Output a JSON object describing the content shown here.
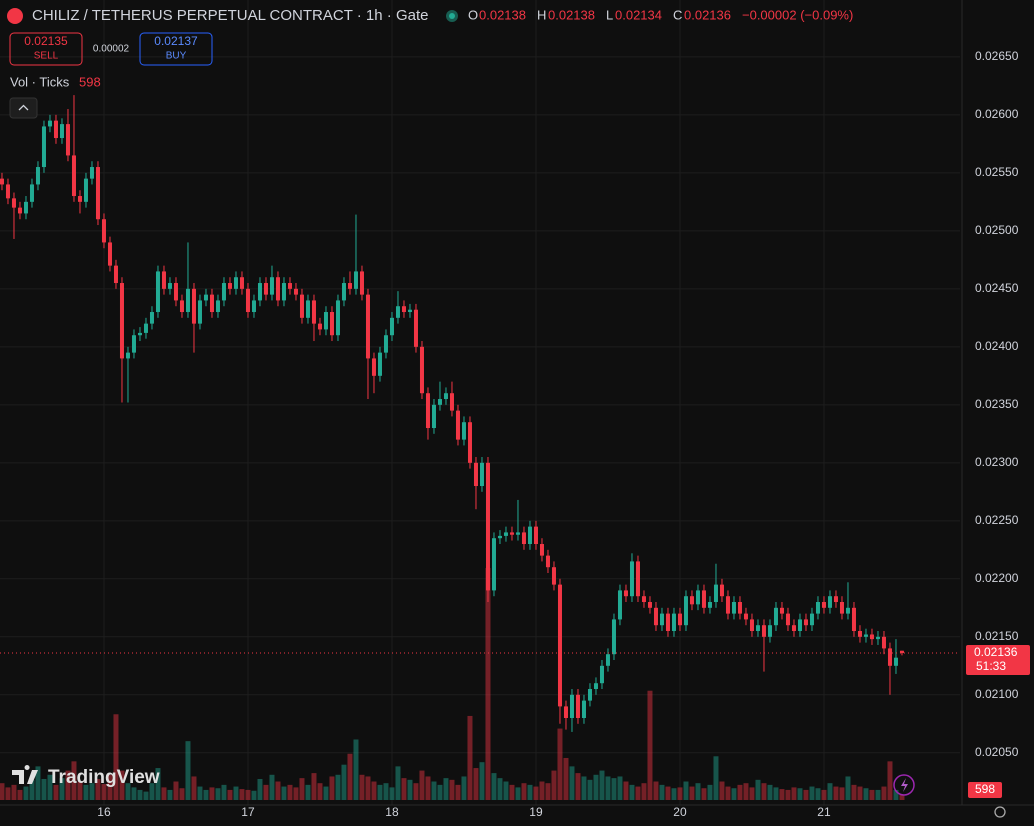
{
  "header": {
    "title": "CHILIZ / TETHERUS PERPETUAL CONTRACT · 1h · Gate",
    "o": "O",
    "h": "H",
    "l": "L",
    "c": "C",
    "change": "−0.00002 (−0.09%)",
    "sell_price": "0.02135",
    "sell": "SELL",
    "spread": "0.00002",
    "buy_price": "0.02137",
    "buy": "BUY",
    "vol_label": "Vol · Ticks",
    "countdown": "51:33",
    "logo": "TradingView"
  },
  "chart_data": {
    "type": "candlestick",
    "up_color": "#22ab94",
    "down_color": "#f23645",
    "ylim": [
      0.02005,
      0.02699
    ],
    "yticks": [
      {
        "value": 0.0205,
        "label": "0.02050"
      },
      {
        "value": 0.021,
        "label": "0.02100"
      },
      {
        "value": 0.0215,
        "label": "0.02150"
      },
      {
        "value": 0.022,
        "label": "0.02200"
      },
      {
        "value": 0.0225,
        "label": "0.02250"
      },
      {
        "value": 0.023,
        "label": "0.02300"
      },
      {
        "value": 0.0235,
        "label": "0.02350"
      },
      {
        "value": 0.024,
        "label": "0.02400"
      },
      {
        "value": 0.0245,
        "label": "0.02450"
      },
      {
        "value": 0.025,
        "label": "0.02500"
      },
      {
        "value": 0.0255,
        "label": "0.02550"
      },
      {
        "value": 0.026,
        "label": "0.02600"
      },
      {
        "value": 0.0265,
        "label": "0.02650"
      }
    ],
    "xlim": [
      -0.33,
      159.67
    ],
    "xticks": [
      {
        "value": 17,
        "label": "16"
      },
      {
        "value": 41,
        "label": "17"
      },
      {
        "value": 65,
        "label": "18"
      },
      {
        "value": 89,
        "label": "19"
      },
      {
        "value": 113,
        "label": "20"
      },
      {
        "value": 137,
        "label": "21"
      }
    ],
    "open": [
      0.02545,
      0.0254,
      0.02528,
      0.0252,
      0.02515,
      0.02525,
      0.0254,
      0.02555,
      0.0259,
      0.02595,
      0.0258,
      0.02592,
      0.02565,
      0.0253,
      0.02525,
      0.02545,
      0.02555,
      0.0251,
      0.0249,
      0.0247,
      0.02455,
      0.0239,
      0.02395,
      0.0241,
      0.02412,
      0.0242,
      0.0243,
      0.02465,
      0.0245,
      0.02455,
      0.0244,
      0.0243,
      0.0245,
      0.0242,
      0.0244,
      0.02445,
      0.0243,
      0.0244,
      0.02455,
      0.0245,
      0.0246,
      0.0245,
      0.0243,
      0.0244,
      0.02455,
      0.02445,
      0.0246,
      0.0244,
      0.02455,
      0.0245,
      0.02445,
      0.02425,
      0.0244,
      0.0242,
      0.02415,
      0.0243,
      0.0241,
      0.0244,
      0.02455,
      0.0245,
      0.02465,
      0.02445,
      0.0239,
      0.02375,
      0.02395,
      0.0241,
      0.02425,
      0.02435,
      0.0243,
      0.02432,
      0.024,
      0.0236,
      0.0233,
      0.0235,
      0.02355,
      0.0236,
      0.02345,
      0.0232,
      0.02335,
      0.023,
      0.0228,
      0.023,
      0.0219,
      0.02235,
      0.02237,
      0.0224,
      0.02238,
      0.0224,
      0.0223,
      0.02245,
      0.0223,
      0.0222,
      0.0221,
      0.02195,
      0.0209,
      0.0208,
      0.021,
      0.0208,
      0.02095,
      0.02105,
      0.0211,
      0.02125,
      0.02135,
      0.02165,
      0.0219,
      0.02185,
      0.02215,
      0.02185,
      0.0218,
      0.02175,
      0.0216,
      0.0217,
      0.02155,
      0.0217,
      0.0216,
      0.02185,
      0.02178,
      0.0219,
      0.02175,
      0.0218,
      0.02195,
      0.02185,
      0.0217,
      0.0218,
      0.0217,
      0.02165,
      0.02155,
      0.0216,
      0.0215,
      0.0216,
      0.02175,
      0.0217,
      0.0216,
      0.02155,
      0.02165,
      0.0216,
      0.0217,
      0.0218,
      0.02175,
      0.02185,
      0.0218,
      0.0217,
      0.02175,
      0.02155,
      0.0215,
      0.02152,
      0.02148,
      0.0215,
      0.0214,
      0.02125,
      0.02138
    ],
    "high": [
      0.0255,
      0.02545,
      0.02533,
      0.02525,
      0.0253,
      0.02545,
      0.0256,
      0.02595,
      0.026,
      0.026,
      0.02597,
      0.02605,
      0.02617,
      0.02535,
      0.0255,
      0.0256,
      0.0256,
      0.02515,
      0.02495,
      0.02475,
      0.0246,
      0.024,
      0.02415,
      0.02417,
      0.02425,
      0.02435,
      0.0247,
      0.0247,
      0.0246,
      0.0246,
      0.02445,
      0.0249,
      0.02455,
      0.02445,
      0.0245,
      0.0245,
      0.02445,
      0.0246,
      0.0246,
      0.02465,
      0.02465,
      0.02455,
      0.02445,
      0.0246,
      0.0246,
      0.0247,
      0.02465,
      0.0246,
      0.0246,
      0.02455,
      0.0245,
      0.02445,
      0.02445,
      0.02425,
      0.02435,
      0.02435,
      0.02445,
      0.0246,
      0.02465,
      0.02514,
      0.0247,
      0.0245,
      0.02395,
      0.024,
      0.02415,
      0.0243,
      0.02448,
      0.0244,
      0.02437,
      0.02437,
      0.02405,
      0.02365,
      0.02355,
      0.0237,
      0.02365,
      0.0237,
      0.0235,
      0.0234,
      0.0234,
      0.02305,
      0.02305,
      0.02305,
      0.0224,
      0.02242,
      0.02245,
      0.02245,
      0.02268,
      0.02245,
      0.0225,
      0.0225,
      0.02235,
      0.02225,
      0.02215,
      0.022,
      0.02095,
      0.02105,
      0.02105,
      0.021,
      0.0211,
      0.02115,
      0.0213,
      0.0214,
      0.0217,
      0.02195,
      0.02195,
      0.02222,
      0.0222,
      0.0219,
      0.02185,
      0.0218,
      0.02175,
      0.02175,
      0.02175,
      0.02175,
      0.0219,
      0.0219,
      0.02195,
      0.02195,
      0.02185,
      0.02213,
      0.022,
      0.0219,
      0.02185,
      0.02185,
      0.02175,
      0.0217,
      0.02165,
      0.02165,
      0.02165,
      0.0218,
      0.0218,
      0.02175,
      0.02165,
      0.0217,
      0.0217,
      0.02175,
      0.02185,
      0.02185,
      0.0219,
      0.0219,
      0.02185,
      0.02197,
      0.0218,
      0.0216,
      0.02157,
      0.02157,
      0.02155,
      0.02155,
      0.02145,
      0.02148,
      0.02138
    ],
    "low": [
      0.02535,
      0.02523,
      0.02493,
      0.0251,
      0.0251,
      0.0252,
      0.02535,
      0.0255,
      0.02585,
      0.02575,
      0.02575,
      0.0256,
      0.02525,
      0.02515,
      0.0252,
      0.0254,
      0.02505,
      0.02485,
      0.02465,
      0.0245,
      0.02352,
      0.02352,
      0.0239,
      0.02405,
      0.02407,
      0.02415,
      0.02425,
      0.02445,
      0.02445,
      0.02435,
      0.02425,
      0.02425,
      0.02395,
      0.02415,
      0.02435,
      0.02425,
      0.02425,
      0.02435,
      0.02445,
      0.02445,
      0.02445,
      0.02425,
      0.02425,
      0.02435,
      0.0244,
      0.0244,
      0.02435,
      0.02435,
      0.02445,
      0.0244,
      0.0242,
      0.0242,
      0.02405,
      0.0241,
      0.0241,
      0.02405,
      0.02405,
      0.02435,
      0.02445,
      0.02445,
      0.0244,
      0.02355,
      0.0236,
      0.0237,
      0.0239,
      0.02405,
      0.0242,
      0.02425,
      0.02425,
      0.02395,
      0.02355,
      0.0232,
      0.02325,
      0.02345,
      0.0235,
      0.0234,
      0.02315,
      0.02315,
      0.02295,
      0.0226,
      0.02275,
      0.0218,
      0.02185,
      0.0223,
      0.02232,
      0.02233,
      0.02233,
      0.02225,
      0.02225,
      0.02225,
      0.02215,
      0.02205,
      0.0219,
      0.02075,
      0.0207,
      0.02068,
      0.02075,
      0.02075,
      0.0209,
      0.021,
      0.02105,
      0.0212,
      0.0213,
      0.0216,
      0.0218,
      0.0218,
      0.0218,
      0.02175,
      0.0217,
      0.02155,
      0.02155,
      0.0215,
      0.0215,
      0.02155,
      0.02155,
      0.02173,
      0.02173,
      0.0217,
      0.0217,
      0.02175,
      0.0218,
      0.02165,
      0.02165,
      0.02165,
      0.0216,
      0.0215,
      0.0215,
      0.0212,
      0.02145,
      0.02155,
      0.02165,
      0.02155,
      0.0215,
      0.0215,
      0.02155,
      0.02155,
      0.02165,
      0.0217,
      0.0217,
      0.02175,
      0.02165,
      0.02165,
      0.0215,
      0.02145,
      0.02145,
      0.02143,
      0.02143,
      0.02135,
      0.021,
      0.02118,
      0.02134
    ],
    "close": [
      0.0254,
      0.02528,
      0.0252,
      0.02515,
      0.02525,
      0.0254,
      0.02555,
      0.0259,
      0.02595,
      0.0258,
      0.02592,
      0.02565,
      0.0253,
      0.02525,
      0.02545,
      0.02555,
      0.0251,
      0.0249,
      0.0247,
      0.02455,
      0.0239,
      0.02395,
      0.0241,
      0.02412,
      0.0242,
      0.0243,
      0.02465,
      0.0245,
      0.02455,
      0.0244,
      0.0243,
      0.0245,
      0.0242,
      0.0244,
      0.02445,
      0.0243,
      0.0244,
      0.02455,
      0.0245,
      0.0246,
      0.0245,
      0.0243,
      0.0244,
      0.02455,
      0.02445,
      0.0246,
      0.0244,
      0.02455,
      0.0245,
      0.02445,
      0.02425,
      0.0244,
      0.0242,
      0.02415,
      0.0243,
      0.0241,
      0.0244,
      0.02455,
      0.0245,
      0.02465,
      0.02445,
      0.0239,
      0.02375,
      0.02395,
      0.0241,
      0.02425,
      0.02435,
      0.0243,
      0.02432,
      0.024,
      0.0236,
      0.0233,
      0.0235,
      0.02355,
      0.0236,
      0.02345,
      0.0232,
      0.02335,
      0.023,
      0.0228,
      0.023,
      0.0219,
      0.02235,
      0.02237,
      0.0224,
      0.02238,
      0.0224,
      0.0223,
      0.02245,
      0.0223,
      0.0222,
      0.0221,
      0.02195,
      0.0209,
      0.0208,
      0.021,
      0.0208,
      0.02095,
      0.02105,
      0.0211,
      0.02125,
      0.02135,
      0.02165,
      0.0219,
      0.02185,
      0.02215,
      0.02185,
      0.0218,
      0.02175,
      0.0216,
      0.0217,
      0.02155,
      0.0217,
      0.0216,
      0.02185,
      0.02178,
      0.0219,
      0.02175,
      0.0218,
      0.02195,
      0.02185,
      0.0217,
      0.0218,
      0.0217,
      0.02165,
      0.02155,
      0.0216,
      0.0215,
      0.0216,
      0.02175,
      0.0217,
      0.0216,
      0.02155,
      0.02165,
      0.0216,
      0.0217,
      0.0218,
      0.02175,
      0.02185,
      0.0218,
      0.0217,
      0.02175,
      0.02155,
      0.0215,
      0.02152,
      0.02148,
      0.0215,
      0.0214,
      0.02125,
      0.02132,
      0.02136
    ],
    "volume": [
      2000,
      1500,
      1800,
      1200,
      1600,
      2400,
      4000,
      2500,
      3000,
      1800,
      2600,
      3500,
      4600,
      2200,
      1800,
      2000,
      2500,
      1900,
      3000,
      10200,
      3500,
      2000,
      1500,
      1200,
      1000,
      2000,
      3800,
      1500,
      1200,
      2200,
      1400,
      7000,
      2800,
      1600,
      1200,
      1500,
      1400,
      1800,
      1200,
      1600,
      1300,
      1200,
      1100,
      2500,
      1800,
      3000,
      2200,
      1600,
      1800,
      1500,
      2600,
      1800,
      3200,
      2000,
      1600,
      2800,
      3000,
      4200,
      5500,
      7200,
      3000,
      2800,
      2200,
      1800,
      2000,
      1500,
      4000,
      2600,
      2400,
      2000,
      3500,
      2800,
      2200,
      1800,
      2600,
      2400,
      1800,
      2800,
      10000,
      3800,
      4500,
      27600,
      3200,
      2600,
      2200,
      1800,
      1500,
      2000,
      1800,
      1600,
      2200,
      2000,
      3500,
      8500,
      5000,
      4000,
      3200,
      2800,
      2400,
      3000,
      3500,
      2800,
      2600,
      2800,
      2200,
      1800,
      1600,
      2000,
      13000,
      2200,
      1800,
      1600,
      1400,
      1500,
      2200,
      1600,
      2000,
      1400,
      1800,
      5200,
      2200,
      1600,
      1400,
      1800,
      2000,
      1500,
      2400,
      2000,
      1800,
      1500,
      1300,
      1200,
      1500,
      1400,
      1200,
      1600,
      1400,
      1200,
      2000,
      1600,
      1500,
      2800,
      1800,
      1600,
      1400,
      1200,
      1200,
      1600,
      4600,
      1200,
      598
    ]
  }
}
